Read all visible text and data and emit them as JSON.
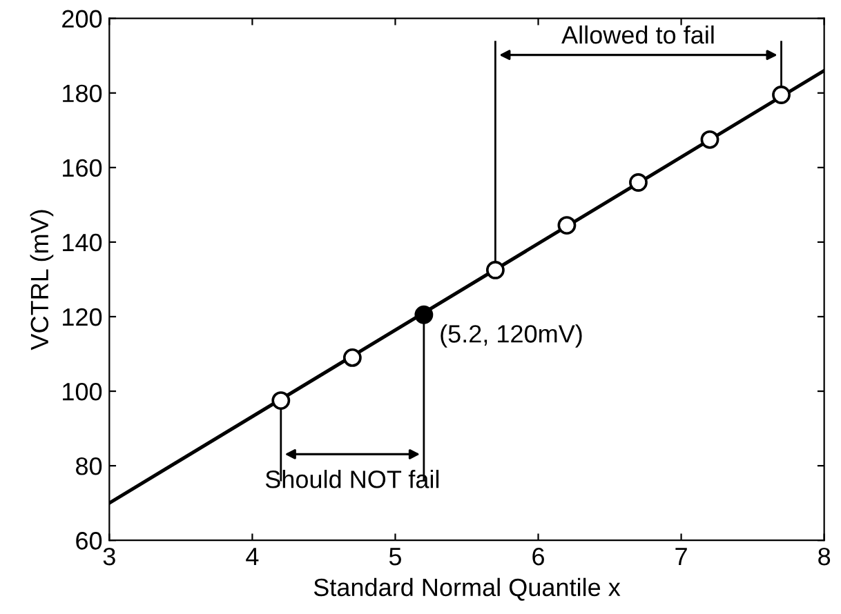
{
  "chart_data": {
    "type": "scatter",
    "xlabel": "Standard Normal Quantile x",
    "ylabel": "VCTRL (mV)",
    "xlim": [
      3,
      8
    ],
    "xticks": [
      3,
      4,
      5,
      6,
      7,
      8
    ],
    "ylim": [
      60,
      200
    ],
    "yticks": [
      60,
      80,
      100,
      120,
      140,
      160,
      180,
      200
    ],
    "grid": false,
    "series": [
      {
        "type": "line",
        "x": [
          3,
          8
        ],
        "values": [
          70,
          186
        ],
        "color": "#000000",
        "marker": "none",
        "line_style": "solid"
      },
      {
        "x": [
          4.2,
          4.7,
          5.2,
          5.7,
          6.2,
          6.7,
          7.2,
          7.7
        ],
        "values": [
          97.5,
          109,
          120.5,
          132.5,
          144.5,
          156,
          167.5,
          179.5
        ],
        "colors": [
          "#ffffff",
          "#ffffff",
          "#000000",
          "#ffffff",
          "#ffffff",
          "#ffffff",
          "#ffffff",
          "#ffffff"
        ],
        "marker": "circle"
      }
    ],
    "ref_lines": [
      {
        "axis": "x",
        "value": 5.7,
        "color": "#000000"
      },
      {
        "axis": "x",
        "value": 7.7,
        "color": "#000000"
      },
      {
        "axis": "x",
        "value": 4.2,
        "color": "#000000"
      },
      {
        "axis": "x",
        "value": 5.2,
        "color": "#000000"
      }
    ],
    "annotations": [
      "Allowed to fail",
      "Should NOT fail",
      {
        "text": "(5.2, 120mV)",
        "x": 5.2,
        "y": 120.5
      }
    ]
  }
}
